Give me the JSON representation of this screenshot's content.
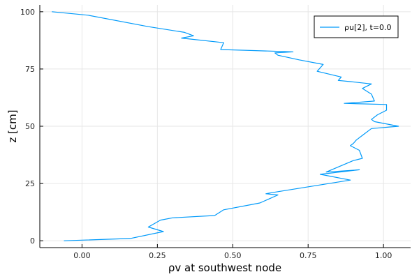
{
  "chart_data": {
    "type": "line",
    "xlabel": "ρv at southwest node",
    "ylabel": "z [cm]",
    "xlim": [
      -0.14,
      1.09
    ],
    "ylim": [
      -3,
      103
    ],
    "xticks": [
      0.0,
      0.25,
      0.5,
      0.75,
      1.0
    ],
    "xtick_labels": [
      "0.00",
      "0.25",
      "0.50",
      "0.75",
      "1.00"
    ],
    "yticks": [
      0,
      25,
      50,
      75,
      100
    ],
    "ytick_labels": [
      "0",
      "25",
      "50",
      "75",
      "100"
    ],
    "grid": true,
    "legend_position": "top-right",
    "series": [
      {
        "name": "ρu[2], t=0.0",
        "color": "#009AFA",
        "x": [
          -0.06,
          0.16,
          0.27,
          0.22,
          0.26,
          0.3,
          0.44,
          0.47,
          0.59,
          0.65,
          0.61,
          0.63,
          0.89,
          0.79,
          0.92,
          0.81,
          0.9,
          0.93,
          0.92,
          0.89,
          0.9,
          0.91,
          0.93,
          0.96,
          1.05,
          0.97,
          0.96,
          0.98,
          1.01,
          1.01,
          0.87,
          0.97,
          0.96,
          0.93,
          0.96,
          0.89,
          0.85,
          0.86,
          0.78,
          0.8,
          0.72,
          0.65,
          0.64,
          0.7,
          0.46,
          0.47,
          0.33,
          0.37,
          0.34,
          0.22,
          0.02,
          -0.1
        ],
        "y": [
          0,
          1,
          4,
          6,
          9,
          10,
          11,
          13.5,
          16.5,
          20,
          20.5,
          21,
          26.5,
          29,
          31,
          30,
          35,
          36,
          39.5,
          41.5,
          42.5,
          44,
          46,
          49,
          50,
          52,
          53,
          55,
          57,
          59.5,
          60,
          61,
          64,
          66.5,
          68.5,
          69.5,
          70,
          71.5,
          74,
          77,
          79,
          81,
          82,
          82.5,
          83.5,
          86.5,
          88.5,
          89.5,
          91,
          93.5,
          98.5,
          100
        ]
      }
    ]
  }
}
